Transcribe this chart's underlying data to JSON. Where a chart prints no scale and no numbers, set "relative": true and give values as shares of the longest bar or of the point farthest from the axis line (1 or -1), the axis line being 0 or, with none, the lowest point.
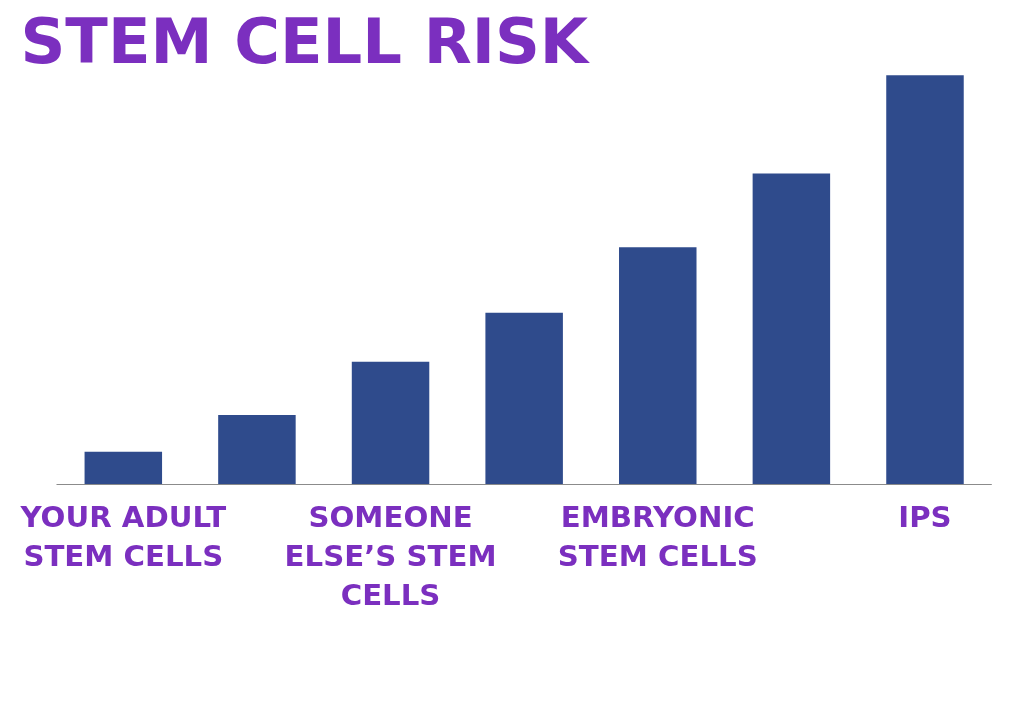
{
  "chart_data": {
    "type": "bar",
    "title": "STEM CELL RISK",
    "relative": true,
    "categories": [
      "YOUR ADULT STEM CELLS",
      null,
      "SOMEONE ELSE’S STEM CELLS",
      null,
      "EMBRYONIC STEM CELLS",
      null,
      "IPS"
    ],
    "values": [
      0.08,
      0.17,
      0.3,
      0.42,
      0.58,
      0.76,
      1
    ],
    "color": "#2f4b8c"
  }
}
